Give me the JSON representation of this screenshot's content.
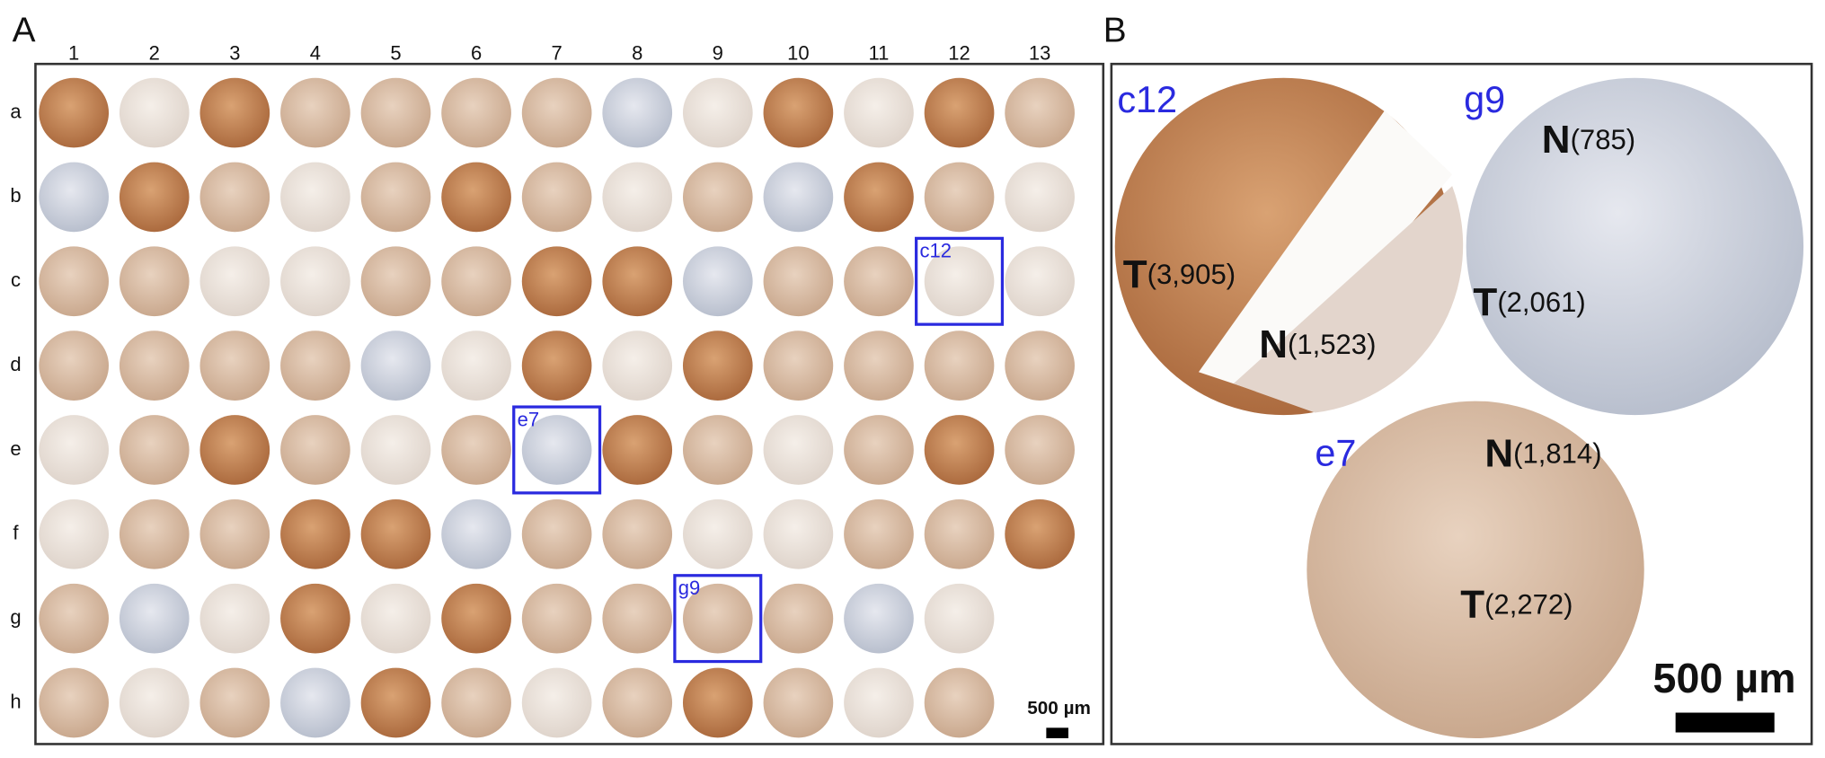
{
  "panel_a": {
    "label": "A",
    "columns": [
      "1",
      "2",
      "3",
      "4",
      "5",
      "6",
      "7",
      "8",
      "9",
      "10",
      "11",
      "12",
      "13"
    ],
    "rows": [
      "a",
      "b",
      "c",
      "d",
      "e",
      "f",
      "g",
      "h"
    ],
    "boxes": [
      "c12",
      "e7",
      "g9"
    ],
    "scale_bar": "500 µm"
  },
  "panel_b": {
    "label": "B",
    "cores": [
      {
        "label": "c12",
        "annotations": [
          {
            "letter": "T",
            "count": "(3,905)"
          },
          {
            "letter": "N",
            "count": "(1,523)"
          }
        ]
      },
      {
        "label": "g9",
        "annotations": [
          {
            "letter": "N",
            "count": "(785)"
          },
          {
            "letter": "T",
            "count": "(2,061)"
          }
        ]
      },
      {
        "label": "e7",
        "annotations": [
          {
            "letter": "N",
            "count": "(1,814)"
          },
          {
            "letter": "T",
            "count": "(2,272)"
          }
        ]
      }
    ],
    "scale_bar": "500 µm"
  }
}
